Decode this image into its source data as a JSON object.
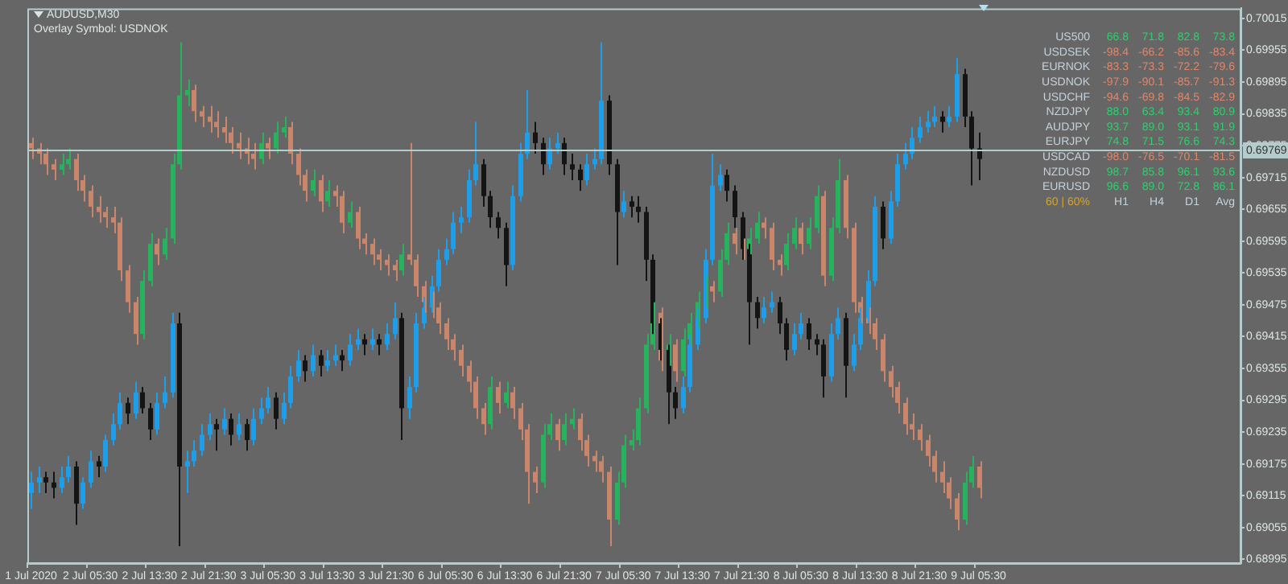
{
  "chart_data": {
    "type": "candlestick",
    "title": "AUDUSD,M30",
    "subtitle": "Overlay Symbol: USDNOK",
    "categories": [
      "1 Jul 2020",
      null,
      null,
      null,
      null,
      null,
      null,
      null,
      "2 Jul 05:30",
      null,
      null,
      null,
      null,
      null,
      null,
      null,
      "2 Jul 13:30",
      null,
      null,
      null,
      null,
      null,
      null,
      null,
      "2 Jul 21:30",
      null,
      null,
      null,
      null,
      null,
      null,
      null,
      "3 Jul 05:30",
      null,
      null,
      null,
      null,
      null,
      null,
      null,
      "3 Jul 13:30",
      null,
      null,
      null,
      null,
      null,
      null,
      null,
      "3 Jul 21:30",
      null,
      null,
      null,
      null,
      null,
      null,
      null,
      "6 Jul 05:30",
      null,
      null,
      null,
      null,
      null,
      null,
      null,
      "6 Jul 13:30",
      null,
      null,
      null,
      null,
      null,
      null,
      null,
      "6 Jul 21:30",
      null,
      null,
      null,
      null,
      null,
      null,
      null,
      "7 Jul 05:30",
      null,
      null,
      null,
      null,
      null,
      null,
      null,
      "7 Jul 13:30",
      null,
      null,
      null,
      null,
      null,
      null,
      null,
      "7 Jul 21:30",
      null,
      null,
      null,
      null,
      null,
      null,
      null,
      "8 Jul 05:30",
      null,
      null,
      null,
      null,
      null,
      null,
      null,
      "8 Jul 13:30",
      null,
      null,
      null,
      null,
      null,
      null,
      null,
      "8 Jul 21:30",
      null,
      null,
      null,
      null,
      null,
      null,
      null,
      "9 Jul 05:30",
      null,
      null,
      null,
      null,
      null,
      null,
      null,
      null,
      null,
      null,
      null,
      null,
      null,
      null,
      null,
      null,
      null,
      null,
      null,
      null,
      null,
      null,
      null,
      null,
      null,
      null,
      null,
      null,
      null,
      null,
      null,
      null,
      null,
      null,
      null
    ],
    "series": [
      {
        "colors": [
          "#1e9ee8",
          "#1e9ee8",
          "#141414",
          "#141414",
          "#1e9ee8",
          "#1e9ee8",
          "#141414",
          "#1e9ee8",
          "#1e9ee8",
          "#141414",
          "#1e9ee8",
          "#1e9ee8",
          "#1e9ee8",
          "#141414",
          "#1e9ee8",
          "#141414",
          "#141414",
          "#1e9ee8",
          "#1e9ee8",
          "#1e9ee8",
          "#141414",
          "#1e9ee8",
          "#1e9ee8",
          "#1e9ee8",
          "#1e9ee8",
          "#141414",
          "#1e9ee8",
          "#141414",
          "#1e9ee8",
          "#141414",
          "#1e9ee8",
          "#1e9ee8",
          "#1e9ee8",
          "#141414",
          "#1e9ee8",
          "#1e9ee8",
          "#1e9ee8",
          "#141414",
          "#1e9ee8",
          "#141414",
          "#1e9ee8",
          "#1e9ee8",
          "#141414",
          "#1e9ee8",
          "#1e9ee8",
          "#141414",
          "#1e9ee8",
          "#141414",
          "#1e9ee8",
          "#1e9ee8",
          "#141414",
          "#1e9ee8",
          "#1e9ee8",
          "#1e9ee8",
          "#1e9ee8",
          "#1e9ee8",
          "#1e9ee8",
          "#1e9ee8",
          "#1e9ee8",
          "#1e9ee8",
          "#1e9ee8",
          "#141414",
          "#141414",
          "#141414",
          "#141414",
          "#1e9ee8",
          "#1e9ee8",
          "#1e9ee8",
          "#141414",
          "#141414",
          "#1e9ee8",
          "#1e9ee8",
          "#141414",
          "#141414",
          "#141414",
          "#1e9ee8",
          "#1e9ee8",
          "#1e9ee8",
          "#141414",
          "#141414",
          "#1e9ee8",
          "#141414",
          "#141414",
          "#141414",
          "#141414",
          "#141414",
          "#141414",
          "#141414",
          "#1e9ee8",
          "#1e9ee8",
          "#1e9ee8",
          "#1e9ee8",
          "#1e9ee8",
          "#1e9ee8",
          "#141414",
          "#141414",
          "#141414",
          "#141414",
          "#141414",
          "#1e9ee8",
          "#1e9ee8",
          "#141414",
          "#141414",
          "#1e9ee8",
          "#1e9ee8",
          "#141414",
          "#141414",
          "#141414",
          "#1e9ee8",
          "#1e9ee8",
          "#141414",
          "#1e9ee8",
          "#1e9ee8",
          "#1e9ee8",
          "#1e9ee8",
          "#141414",
          "#1e9ee8",
          "#1e9ee8",
          "#1e9ee8",
          "#1e9ee8",
          "#1e9ee8",
          "#1e9ee8",
          "#1e9ee8",
          "#141414",
          "#1e9ee8",
          "#1e9ee8",
          "#141414",
          "#141414",
          "#141414",
          null,
          null,
          null,
          null,
          null,
          null,
          null,
          null,
          null,
          null,
          null,
          null,
          null,
          null,
          null,
          null,
          null,
          null,
          null,
          null,
          null,
          null,
          null,
          null,
          null,
          null,
          null,
          null,
          null,
          null,
          null,
          null,
          null,
          null,
          null
        ],
        "ohlc": [
          [
            0.6912,
            0.6916,
            0.6909,
            0.6914
          ],
          [
            0.6914,
            0.6917,
            0.6912,
            0.6915
          ],
          [
            0.6915,
            0.6916,
            0.6912,
            0.6914
          ],
          [
            0.6914,
            0.6916,
            0.6911,
            0.6913
          ],
          [
            0.6913,
            0.6917,
            0.6912,
            0.6915
          ],
          [
            0.6915,
            0.6919,
            0.6914,
            0.6917
          ],
          [
            0.6917,
            0.6918,
            0.6906,
            0.691
          ],
          [
            0.691,
            0.6915,
            0.6909,
            0.6914
          ],
          [
            0.6914,
            0.692,
            0.6913,
            0.6918
          ],
          [
            0.6918,
            0.6919,
            0.6915,
            0.6917
          ],
          [
            0.6917,
            0.6923,
            0.6916,
            0.6922
          ],
          [
            0.6922,
            0.6927,
            0.6921,
            0.6925
          ],
          [
            0.6925,
            0.6931,
            0.6924,
            0.6929
          ],
          [
            0.6929,
            0.693,
            0.6925,
            0.6927
          ],
          [
            0.6927,
            0.6933,
            0.6926,
            0.6931
          ],
          [
            0.6931,
            0.6932,
            0.6927,
            0.6928
          ],
          [
            0.6928,
            0.6929,
            0.6922,
            0.6924
          ],
          [
            0.6924,
            0.6931,
            0.6923,
            0.6929
          ],
          [
            0.6929,
            0.6934,
            0.6928,
            0.6931
          ],
          [
            0.6931,
            0.6946,
            0.693,
            0.6944
          ],
          [
            0.6944,
            0.6946,
            0.6902,
            0.6917
          ],
          [
            0.6917,
            0.692,
            0.6912,
            0.6918
          ],
          [
            0.6918,
            0.6922,
            0.6917,
            0.692
          ],
          [
            0.692,
            0.6925,
            0.6919,
            0.6923
          ],
          [
            0.6923,
            0.6927,
            0.6922,
            0.6925
          ],
          [
            0.6925,
            0.6926,
            0.692,
            0.6924
          ],
          [
            0.6924,
            0.6928,
            0.6923,
            0.6926
          ],
          [
            0.6926,
            0.6927,
            0.6921,
            0.6923
          ],
          [
            0.6923,
            0.6927,
            0.6922,
            0.6925
          ],
          [
            0.6925,
            0.6926,
            0.692,
            0.6922
          ],
          [
            0.6922,
            0.6928,
            0.6921,
            0.6926
          ],
          [
            0.6926,
            0.693,
            0.6925,
            0.6928
          ],
          [
            0.6928,
            0.6932,
            0.6927,
            0.693
          ],
          [
            0.693,
            0.6931,
            0.6924,
            0.6926
          ],
          [
            0.6926,
            0.6931,
            0.6925,
            0.6929
          ],
          [
            0.6929,
            0.6936,
            0.6928,
            0.6934
          ],
          [
            0.6934,
            0.6939,
            0.6933,
            0.6937
          ],
          [
            0.6937,
            0.6938,
            0.6933,
            0.6935
          ],
          [
            0.6935,
            0.694,
            0.6934,
            0.6938
          ],
          [
            0.6938,
            0.6939,
            0.6934,
            0.6936
          ],
          [
            0.6936,
            0.6939,
            0.6935,
            0.6937
          ],
          [
            0.6937,
            0.694,
            0.6936,
            0.6938
          ],
          [
            0.6938,
            0.6939,
            0.6935,
            0.6937
          ],
          [
            0.6937,
            0.6942,
            0.6936,
            0.694
          ],
          [
            0.694,
            0.6943,
            0.6939,
            0.6941
          ],
          [
            0.6941,
            0.6942,
            0.6938,
            0.694
          ],
          [
            0.694,
            0.6943,
            0.6939,
            0.6941
          ],
          [
            0.6941,
            0.6942,
            0.6938,
            0.694
          ],
          [
            0.694,
            0.6944,
            0.6939,
            0.6942
          ],
          [
            0.6942,
            0.6948,
            0.6941,
            0.6945
          ],
          [
            0.6945,
            0.6946,
            0.6922,
            0.6928
          ],
          [
            0.6928,
            0.6934,
            0.6926,
            0.6932
          ],
          [
            0.6932,
            0.6946,
            0.6931,
            0.6944
          ],
          [
            0.6944,
            0.6949,
            0.6943,
            0.6947
          ],
          [
            0.6947,
            0.6953,
            0.6946,
            0.6951
          ],
          [
            0.6951,
            0.6958,
            0.695,
            0.6956
          ],
          [
            0.6956,
            0.696,
            0.6955,
            0.6958
          ],
          [
            0.6958,
            0.6965,
            0.6957,
            0.6963
          ],
          [
            0.6963,
            0.6966,
            0.6961,
            0.6964
          ],
          [
            0.6964,
            0.6973,
            0.6963,
            0.6971
          ],
          [
            0.6971,
            0.6982,
            0.697,
            0.6974
          ],
          [
            0.6974,
            0.6975,
            0.6966,
            0.6968
          ],
          [
            0.6968,
            0.6969,
            0.6962,
            0.6964
          ],
          [
            0.6964,
            0.6965,
            0.696,
            0.6962
          ],
          [
            0.6962,
            0.6963,
            0.6951,
            0.6955
          ],
          [
            0.6955,
            0.697,
            0.6954,
            0.6968
          ],
          [
            0.6968,
            0.6978,
            0.6967,
            0.6976
          ],
          [
            0.6976,
            0.6988,
            0.6975,
            0.698
          ],
          [
            0.698,
            0.6982,
            0.6976,
            0.6978
          ],
          [
            0.6978,
            0.6979,
            0.6972,
            0.6974
          ],
          [
            0.6974,
            0.6979,
            0.6973,
            0.6977
          ],
          [
            0.6977,
            0.698,
            0.6976,
            0.6978
          ],
          [
            0.6978,
            0.6979,
            0.6972,
            0.6974
          ],
          [
            0.6974,
            0.6976,
            0.6971,
            0.6973
          ],
          [
            0.6973,
            0.6974,
            0.6969,
            0.6971
          ],
          [
            0.6971,
            0.6976,
            0.697,
            0.6974
          ],
          [
            0.6974,
            0.6977,
            0.6973,
            0.6975
          ],
          [
            0.6975,
            0.6997,
            0.6974,
            0.6986
          ],
          [
            0.6986,
            0.6987,
            0.6972,
            0.6974
          ],
          [
            0.6974,
            0.6975,
            0.6955,
            0.6965
          ],
          [
            0.6965,
            0.6969,
            0.6964,
            0.6967
          ],
          [
            0.6967,
            0.6968,
            0.6964,
            0.6966
          ],
          [
            0.6966,
            0.6968,
            0.6963,
            0.6965
          ],
          [
            0.6965,
            0.6966,
            0.6952,
            0.6956
          ],
          [
            0.6956,
            0.6957,
            0.6942,
            0.6944
          ],
          [
            0.6944,
            0.6945,
            0.6937,
            0.6939
          ],
          [
            0.6939,
            0.694,
            0.6925,
            0.6931
          ],
          [
            0.6931,
            0.6932,
            0.6926,
            0.6928
          ],
          [
            0.6928,
            0.6934,
            0.6927,
            0.6932
          ],
          [
            0.6932,
            0.6942,
            0.6931,
            0.694
          ],
          [
            0.694,
            0.6947,
            0.6939,
            0.6945
          ],
          [
            0.6945,
            0.6958,
            0.6944,
            0.6956
          ],
          [
            0.6956,
            0.6976,
            0.6955,
            0.697
          ],
          [
            0.697,
            0.6974,
            0.6969,
            0.6972
          ],
          [
            0.6972,
            0.6973,
            0.6967,
            0.6969
          ],
          [
            0.6969,
            0.697,
            0.6962,
            0.6964
          ],
          [
            0.6964,
            0.6965,
            0.6956,
            0.6958
          ],
          [
            0.6958,
            0.6959,
            0.694,
            0.6948
          ],
          [
            0.6948,
            0.6949,
            0.6943,
            0.6945
          ],
          [
            0.6945,
            0.6949,
            0.6944,
            0.6947
          ],
          [
            0.6947,
            0.695,
            0.6946,
            0.6948
          ],
          [
            0.6948,
            0.6949,
            0.6942,
            0.6944
          ],
          [
            0.6944,
            0.6945,
            0.6937,
            0.6939
          ],
          [
            0.6939,
            0.6944,
            0.6938,
            0.6942
          ],
          [
            0.6942,
            0.6946,
            0.6941,
            0.6944
          ],
          [
            0.6944,
            0.6945,
            0.6939,
            0.6941
          ],
          [
            0.6941,
            0.6942,
            0.6938,
            0.694
          ],
          [
            0.694,
            0.6941,
            0.693,
            0.6934
          ],
          [
            0.6934,
            0.6944,
            0.6933,
            0.6942
          ],
          [
            0.6942,
            0.6947,
            0.6941,
            0.6945
          ],
          [
            0.6945,
            0.6946,
            0.693,
            0.6936
          ],
          [
            0.6936,
            0.6942,
            0.6935,
            0.694
          ],
          [
            0.694,
            0.6947,
            0.6939,
            0.6945
          ],
          [
            0.6945,
            0.6954,
            0.6944,
            0.6952
          ],
          [
            0.6952,
            0.6968,
            0.6951,
            0.6966
          ],
          [
            0.6966,
            0.6967,
            0.6958,
            0.696
          ],
          [
            0.696,
            0.6969,
            0.6959,
            0.6967
          ],
          [
            0.6967,
            0.6976,
            0.6966,
            0.6974
          ],
          [
            0.6974,
            0.6978,
            0.6973,
            0.6976
          ],
          [
            0.6976,
            0.6981,
            0.6975,
            0.6979
          ],
          [
            0.6979,
            0.6983,
            0.6978,
            0.6981
          ],
          [
            0.6981,
            0.6984,
            0.698,
            0.6982
          ],
          [
            0.6982,
            0.6985,
            0.6981,
            0.6983
          ],
          [
            0.6983,
            0.6984,
            0.698,
            0.6982
          ],
          [
            0.6982,
            0.6985,
            0.6981,
            0.6983
          ],
          [
            0.6983,
            0.6994,
            0.6982,
            0.6991
          ],
          [
            0.6991,
            0.6992,
            0.6981,
            0.6983
          ],
          [
            0.6983,
            0.6984,
            0.697,
            0.6977
          ],
          [
            0.6977,
            0.698,
            0.6971,
            0.6975
          ],
          null,
          null,
          null,
          null,
          null,
          null,
          null,
          null,
          null,
          null,
          null,
          null,
          null,
          null,
          null,
          null,
          null,
          null,
          null,
          null,
          null,
          null,
          null,
          null,
          null,
          null,
          null,
          null,
          null,
          null,
          null,
          null,
          null,
          null,
          null
        ]
      },
      {
        "colors": [
          "#c9866a",
          "#c9866a",
          "#c9866a",
          "#c9866a",
          "#27b35e",
          "#27b35e",
          "#c9866a",
          "#c9866a",
          "#c9866a",
          "#c9866a",
          "#c9866a",
          "#c9866a",
          "#c9866a",
          "#c9866a",
          "#c9866a",
          "#27b35e",
          "#27b35e",
          "#c9866a",
          "#27b35e",
          "#27b35e",
          "#27b35e",
          "#27b35e",
          "#c9866a",
          "#c9866a",
          "#c9866a",
          "#c9866a",
          "#c9866a",
          "#c9866a",
          "#c9866a",
          "#c9866a",
          "#c9866a",
          "#27b35e",
          "#c9866a",
          "#27b35e",
          "#27b35e",
          "#c9866a",
          "#c9866a",
          "#c9866a",
          "#27b35e",
          "#c9866a",
          "#27b35e",
          "#c9866a",
          "#c9866a",
          "#27b35e",
          "#c9866a",
          "#c9866a",
          "#c9866a",
          "#c9866a",
          "#c9866a",
          "#c9866a",
          "#27b35e",
          "#c9866a",
          "#c9866a",
          "#c9866a",
          "#c9866a",
          "#c9866a",
          "#c9866a",
          "#c9866a",
          "#c9866a",
          "#c9866a",
          "#c9866a",
          "#c9866a",
          "#27b35e",
          "#c9866a",
          "#27b35e",
          "#c9866a",
          "#c9866a",
          "#c9866a",
          "#c9866a",
          "#27b35e",
          "#27b35e",
          "#c9866a",
          "#27b35e",
          "#27b35e",
          "#c9866a",
          "#c9866a",
          "#c9866a",
          "#c9866a",
          "#c9866a",
          "#27b35e",
          "#27b35e",
          "#27b35e",
          "#27b35e",
          "#27b35e",
          "#27b35e",
          "#c9866a",
          "#27b35e",
          "#c9866a",
          "#27b35e",
          "#27b35e",
          "#27b35e",
          "#27b35e",
          "#c9866a",
          "#27b35e",
          "#27b35e",
          "#c9866a",
          "#c9866a",
          "#27b35e",
          "#27b35e",
          "#c9866a",
          "#c9866a",
          "#c9866a",
          "#27b35e",
          "#27b35e",
          "#c9866a",
          "#27b35e",
          "#27b35e",
          "#c9866a",
          "#27b35e",
          "#27b35e",
          "#c9866a",
          "#c9866a",
          "#c9866a",
          "#c9866a",
          "#c9866a",
          "#c9866a",
          "#c9866a",
          "#c9866a",
          "#c9866a",
          "#c9866a",
          "#c9866a",
          "#c9866a",
          "#c9866a",
          "#c9866a",
          "#c9866a",
          "#c9866a",
          "#27b35e",
          "#27b35e",
          "#c9866a",
          null,
          null,
          null,
          null,
          null,
          null,
          null,
          null,
          null,
          null,
          null,
          null,
          null,
          null,
          null,
          null,
          null,
          null,
          null,
          null,
          null,
          null,
          null,
          null,
          null,
          null,
          null,
          null,
          null,
          null,
          null,
          null,
          null,
          null,
          null
        ],
        "ohlc": [
          [
            0.6978,
            0.6979,
            0.6975,
            0.6977
          ],
          [
            0.6977,
            0.6978,
            0.6974,
            0.6976
          ],
          [
            0.6976,
            0.6977,
            0.6972,
            0.6974
          ],
          [
            0.6974,
            0.6975,
            0.6971,
            0.6973
          ],
          [
            0.6973,
            0.6976,
            0.6972,
            0.6974
          ],
          [
            0.6974,
            0.6977,
            0.6973,
            0.6975
          ],
          [
            0.6975,
            0.6976,
            0.6969,
            0.6971
          ],
          [
            0.6971,
            0.6972,
            0.6967,
            0.6969
          ],
          [
            0.6969,
            0.697,
            0.6964,
            0.6966
          ],
          [
            0.6966,
            0.6968,
            0.6963,
            0.6965
          ],
          [
            0.6965,
            0.6966,
            0.6962,
            0.6964
          ],
          [
            0.6964,
            0.6966,
            0.6961,
            0.6963
          ],
          [
            0.6963,
            0.6964,
            0.6952,
            0.6954
          ],
          [
            0.6954,
            0.6955,
            0.6946,
            0.6948
          ],
          [
            0.6948,
            0.6949,
            0.694,
            0.6942
          ],
          [
            0.6942,
            0.6954,
            0.6941,
            0.6952
          ],
          [
            0.6952,
            0.6961,
            0.6951,
            0.6959
          ],
          [
            0.6959,
            0.696,
            0.6955,
            0.6957
          ],
          [
            0.6957,
            0.6962,
            0.6956,
            0.696
          ],
          [
            0.696,
            0.6976,
            0.6959,
            0.6974
          ],
          [
            0.6974,
            0.6997,
            0.6973,
            0.6987
          ],
          [
            0.6987,
            0.699,
            0.6985,
            0.6988
          ],
          [
            0.6988,
            0.6989,
            0.6982,
            0.6984
          ],
          [
            0.6984,
            0.6985,
            0.6981,
            0.6983
          ],
          [
            0.6983,
            0.6985,
            0.698,
            0.6982
          ],
          [
            0.6982,
            0.6984,
            0.6979,
            0.6981
          ],
          [
            0.6981,
            0.6983,
            0.6978,
            0.698
          ],
          [
            0.698,
            0.6981,
            0.6976,
            0.6978
          ],
          [
            0.6978,
            0.698,
            0.6975,
            0.6977
          ],
          [
            0.6977,
            0.6979,
            0.6974,
            0.6976
          ],
          [
            0.6976,
            0.6978,
            0.6973,
            0.6975
          ],
          [
            0.6975,
            0.698,
            0.6974,
            0.6978
          ],
          [
            0.6978,
            0.6979,
            0.6975,
            0.6977
          ],
          [
            0.6977,
            0.6982,
            0.6976,
            0.698
          ],
          [
            0.698,
            0.6983,
            0.6979,
            0.6981
          ],
          [
            0.6981,
            0.6982,
            0.6974,
            0.6976
          ],
          [
            0.6976,
            0.6977,
            0.697,
            0.6972
          ],
          [
            0.6972,
            0.6973,
            0.6967,
            0.6969
          ],
          [
            0.6969,
            0.6973,
            0.6968,
            0.6971
          ],
          [
            0.6971,
            0.6972,
            0.6965,
            0.6967
          ],
          [
            0.6967,
            0.6971,
            0.6966,
            0.6969
          ],
          [
            0.6969,
            0.697,
            0.6966,
            0.6968
          ],
          [
            0.6968,
            0.6969,
            0.6961,
            0.6963
          ],
          [
            0.6963,
            0.6967,
            0.6962,
            0.6965
          ],
          [
            0.6965,
            0.6966,
            0.6958,
            0.696
          ],
          [
            0.696,
            0.6961,
            0.6957,
            0.6959
          ],
          [
            0.6959,
            0.696,
            0.6955,
            0.6957
          ],
          [
            0.6957,
            0.6958,
            0.6954,
            0.6956
          ],
          [
            0.6956,
            0.6957,
            0.6953,
            0.6955
          ],
          [
            0.6955,
            0.6956,
            0.6952,
            0.6954
          ],
          [
            0.6954,
            0.6959,
            0.6953,
            0.6957
          ],
          [
            0.6957,
            0.6978,
            0.6955,
            0.6956
          ],
          [
            0.6956,
            0.6957,
            0.6949,
            0.6951
          ],
          [
            0.6951,
            0.6952,
            0.6946,
            0.6948
          ],
          [
            0.6948,
            0.695,
            0.6945,
            0.6947
          ],
          [
            0.6947,
            0.6948,
            0.6942,
            0.6944
          ],
          [
            0.6944,
            0.6945,
            0.6939,
            0.6941
          ],
          [
            0.6941,
            0.6942,
            0.6937,
            0.6939
          ],
          [
            0.6939,
            0.694,
            0.6934,
            0.6936
          ],
          [
            0.6936,
            0.6937,
            0.6931,
            0.6933
          ],
          [
            0.6933,
            0.6934,
            0.6926,
            0.6928
          ],
          [
            0.6928,
            0.6929,
            0.6923,
            0.6925
          ],
          [
            0.6925,
            0.6934,
            0.6924,
            0.6932
          ],
          [
            0.6932,
            0.6933,
            0.6927,
            0.6929
          ],
          [
            0.6929,
            0.6933,
            0.6928,
            0.6931
          ],
          [
            0.6931,
            0.6932,
            0.6926,
            0.6928
          ],
          [
            0.6928,
            0.6929,
            0.6922,
            0.6924
          ],
          [
            0.6924,
            0.6925,
            0.691,
            0.6916
          ],
          [
            0.6916,
            0.6917,
            0.6912,
            0.6914
          ],
          [
            0.6914,
            0.6925,
            0.6913,
            0.6923
          ],
          [
            0.6923,
            0.6927,
            0.6922,
            0.6925
          ],
          [
            0.6925,
            0.6926,
            0.692,
            0.6922
          ],
          [
            0.6922,
            0.6927,
            0.6921,
            0.6925
          ],
          [
            0.6925,
            0.6928,
            0.6924,
            0.6926
          ],
          [
            0.6926,
            0.6927,
            0.692,
            0.6922
          ],
          [
            0.6922,
            0.6923,
            0.6917,
            0.6919
          ],
          [
            0.6919,
            0.692,
            0.6916,
            0.6918
          ],
          [
            0.6918,
            0.6919,
            0.6914,
            0.6916
          ],
          [
            0.6916,
            0.6917,
            0.6902,
            0.6907
          ],
          [
            0.6907,
            0.6916,
            0.6906,
            0.6914
          ],
          [
            0.6914,
            0.6923,
            0.6913,
            0.6921
          ],
          [
            0.6921,
            0.6924,
            0.692,
            0.6922
          ],
          [
            0.6922,
            0.693,
            0.6921,
            0.6928
          ],
          [
            0.6928,
            0.6942,
            0.6927,
            0.694
          ],
          [
            0.694,
            0.6948,
            0.6939,
            0.6946
          ],
          [
            0.6946,
            0.6947,
            0.6935,
            0.6937
          ],
          [
            0.6937,
            0.6942,
            0.6936,
            0.694
          ],
          [
            0.694,
            0.6941,
            0.6933,
            0.6935
          ],
          [
            0.6935,
            0.6943,
            0.6934,
            0.6941
          ],
          [
            0.6941,
            0.6946,
            0.694,
            0.6944
          ],
          [
            0.6944,
            0.695,
            0.6943,
            0.6948
          ],
          [
            0.6948,
            0.6953,
            0.6947,
            0.6951
          ],
          [
            0.6951,
            0.6952,
            0.6948,
            0.695
          ],
          [
            0.695,
            0.6958,
            0.6949,
            0.6956
          ],
          [
            0.6956,
            0.6963,
            0.6955,
            0.6961
          ],
          [
            0.6961,
            0.6962,
            0.6957,
            0.6959
          ],
          [
            0.6959,
            0.696,
            0.6956,
            0.6958
          ],
          [
            0.6958,
            0.6962,
            0.6957,
            0.696
          ],
          [
            0.696,
            0.6965,
            0.6959,
            0.6963
          ],
          [
            0.6963,
            0.6964,
            0.696,
            0.6962
          ],
          [
            0.6962,
            0.6963,
            0.6954,
            0.6956
          ],
          [
            0.6956,
            0.6957,
            0.6953,
            0.6955
          ],
          [
            0.6955,
            0.6961,
            0.6954,
            0.6959
          ],
          [
            0.6959,
            0.6964,
            0.6958,
            0.6962
          ],
          [
            0.6962,
            0.6963,
            0.6957,
            0.6959
          ],
          [
            0.6959,
            0.6964,
            0.6958,
            0.6962
          ],
          [
            0.6962,
            0.697,
            0.6961,
            0.6968
          ],
          [
            0.6968,
            0.6969,
            0.6951,
            0.6953
          ],
          [
            0.6953,
            0.6964,
            0.6952,
            0.6962
          ],
          [
            0.6962,
            0.6975,
            0.6961,
            0.6971
          ],
          [
            0.6971,
            0.6972,
            0.696,
            0.6962
          ],
          [
            0.6962,
            0.6963,
            0.6946,
            0.6948
          ],
          [
            0.6948,
            0.6949,
            0.6944,
            0.6946
          ],
          [
            0.6946,
            0.6947,
            0.6942,
            0.6944
          ],
          [
            0.6944,
            0.6945,
            0.6939,
            0.6941
          ],
          [
            0.6941,
            0.6942,
            0.6933,
            0.6935
          ],
          [
            0.6935,
            0.6936,
            0.693,
            0.6932
          ],
          [
            0.6932,
            0.6933,
            0.6927,
            0.6929
          ],
          [
            0.6929,
            0.693,
            0.6923,
            0.6925
          ],
          [
            0.6925,
            0.6927,
            0.6922,
            0.6924
          ],
          [
            0.6924,
            0.6925,
            0.692,
            0.6922
          ],
          [
            0.6922,
            0.6923,
            0.6917,
            0.6919
          ],
          [
            0.6919,
            0.692,
            0.6914,
            0.6916
          ],
          [
            0.6916,
            0.6918,
            0.6912,
            0.6914
          ],
          [
            0.6914,
            0.6915,
            0.6909,
            0.6911
          ],
          [
            0.6911,
            0.6912,
            0.6905,
            0.6907
          ],
          [
            0.6907,
            0.6916,
            0.6906,
            0.6914
          ],
          [
            0.6914,
            0.6919,
            0.6913,
            0.6917
          ],
          [
            0.6917,
            0.6918,
            0.6911,
            0.6913
          ],
          null,
          null,
          null,
          null,
          null,
          null,
          null,
          null,
          null,
          null,
          null,
          null,
          null,
          null,
          null,
          null,
          null,
          null,
          null,
          null,
          null,
          null,
          null,
          null,
          null,
          null,
          null,
          null,
          null,
          null,
          null,
          null,
          null,
          null,
          null
        ]
      }
    ],
    "ylim": [
      0.68988,
      0.70034
    ],
    "yticks": [
      0.68995,
      0.69055,
      0.69115,
      0.69175,
      0.69235,
      0.69295,
      0.69355,
      0.69415,
      0.69475,
      0.69535,
      0.69595,
      0.69655,
      0.69715,
      0.69775,
      0.69835,
      0.69895,
      0.69955,
      0.70015
    ],
    "ref_lines": [
      {
        "axis": "y",
        "value": 0.69769,
        "label": "0.69769",
        "color": "#b4cccc"
      }
    ],
    "annotations": [
      "US500 66.8 71.8 82.8 73.8",
      "USDSEK -98.4 -66.2 -85.6 -83.4",
      "EURNOK -83.3 -73.3 -72.2 -79.6",
      "USDNOK -97.9 -90.1 -85.7 -91.3",
      "USDCHF -94.6 -69.8 -84.5 -82.9",
      "NZDJPY 88.0 63.4 93.4 80.9",
      "AUDJPY 93.7 89.0 93.1 91.9",
      "EURJPY 74.8 71.5 76.6 74.3",
      "USDCAD -98.0 -76.5 -70.1 -81.5",
      "NZDUSD 98.7 85.8 96.1 93.6",
      "EURUSD 96.6 89.0 72.8 86.1",
      "60 | 60% H1 H4 D1 Avg"
    ]
  }
}
